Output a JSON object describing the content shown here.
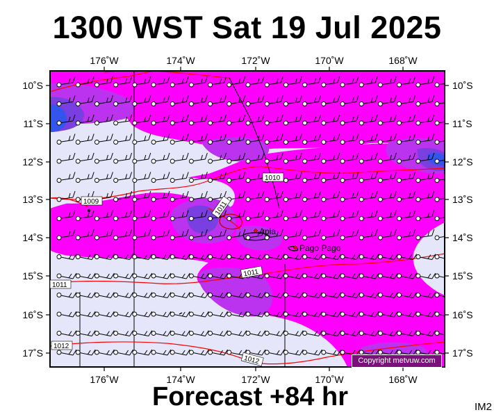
{
  "title": "1300 WST Sat 19 Jul 2025",
  "footer": "Forecast +84 hr",
  "corner_label": "IM2",
  "copyright": "Copyright metvuw.com",
  "lon_labels": [
    "176˚W",
    "174˚W",
    "172˚W",
    "170˚W",
    "168˚W"
  ],
  "lat_labels": [
    "10˚S",
    "11˚S",
    "12˚S",
    "13˚S",
    "14˚S",
    "15˚S",
    "16˚S",
    "17˚S"
  ],
  "places": [
    {
      "name": "Apia"
    },
    {
      "name": "Pago Pago"
    }
  ],
  "isobar_labels": [
    "1009",
    "1010",
    "1011",
    "1011",
    "1011",
    "1012",
    "1012"
  ],
  "colors": {
    "background_field": "#e6e6fa",
    "rain_light": "#ff00ff",
    "rain_medium": "#bb33ee",
    "rain_heavy": "#7a3fe0",
    "rain_extreme": "#3355ee",
    "isobar": "#ff0000",
    "coast": "#b00000",
    "copyright_bg": "#7b0f7b"
  },
  "icons": {
    "wind_barb": "wind-barb-icon",
    "station": "station-circle-icon",
    "place_marker": "red-diamond-icon"
  }
}
